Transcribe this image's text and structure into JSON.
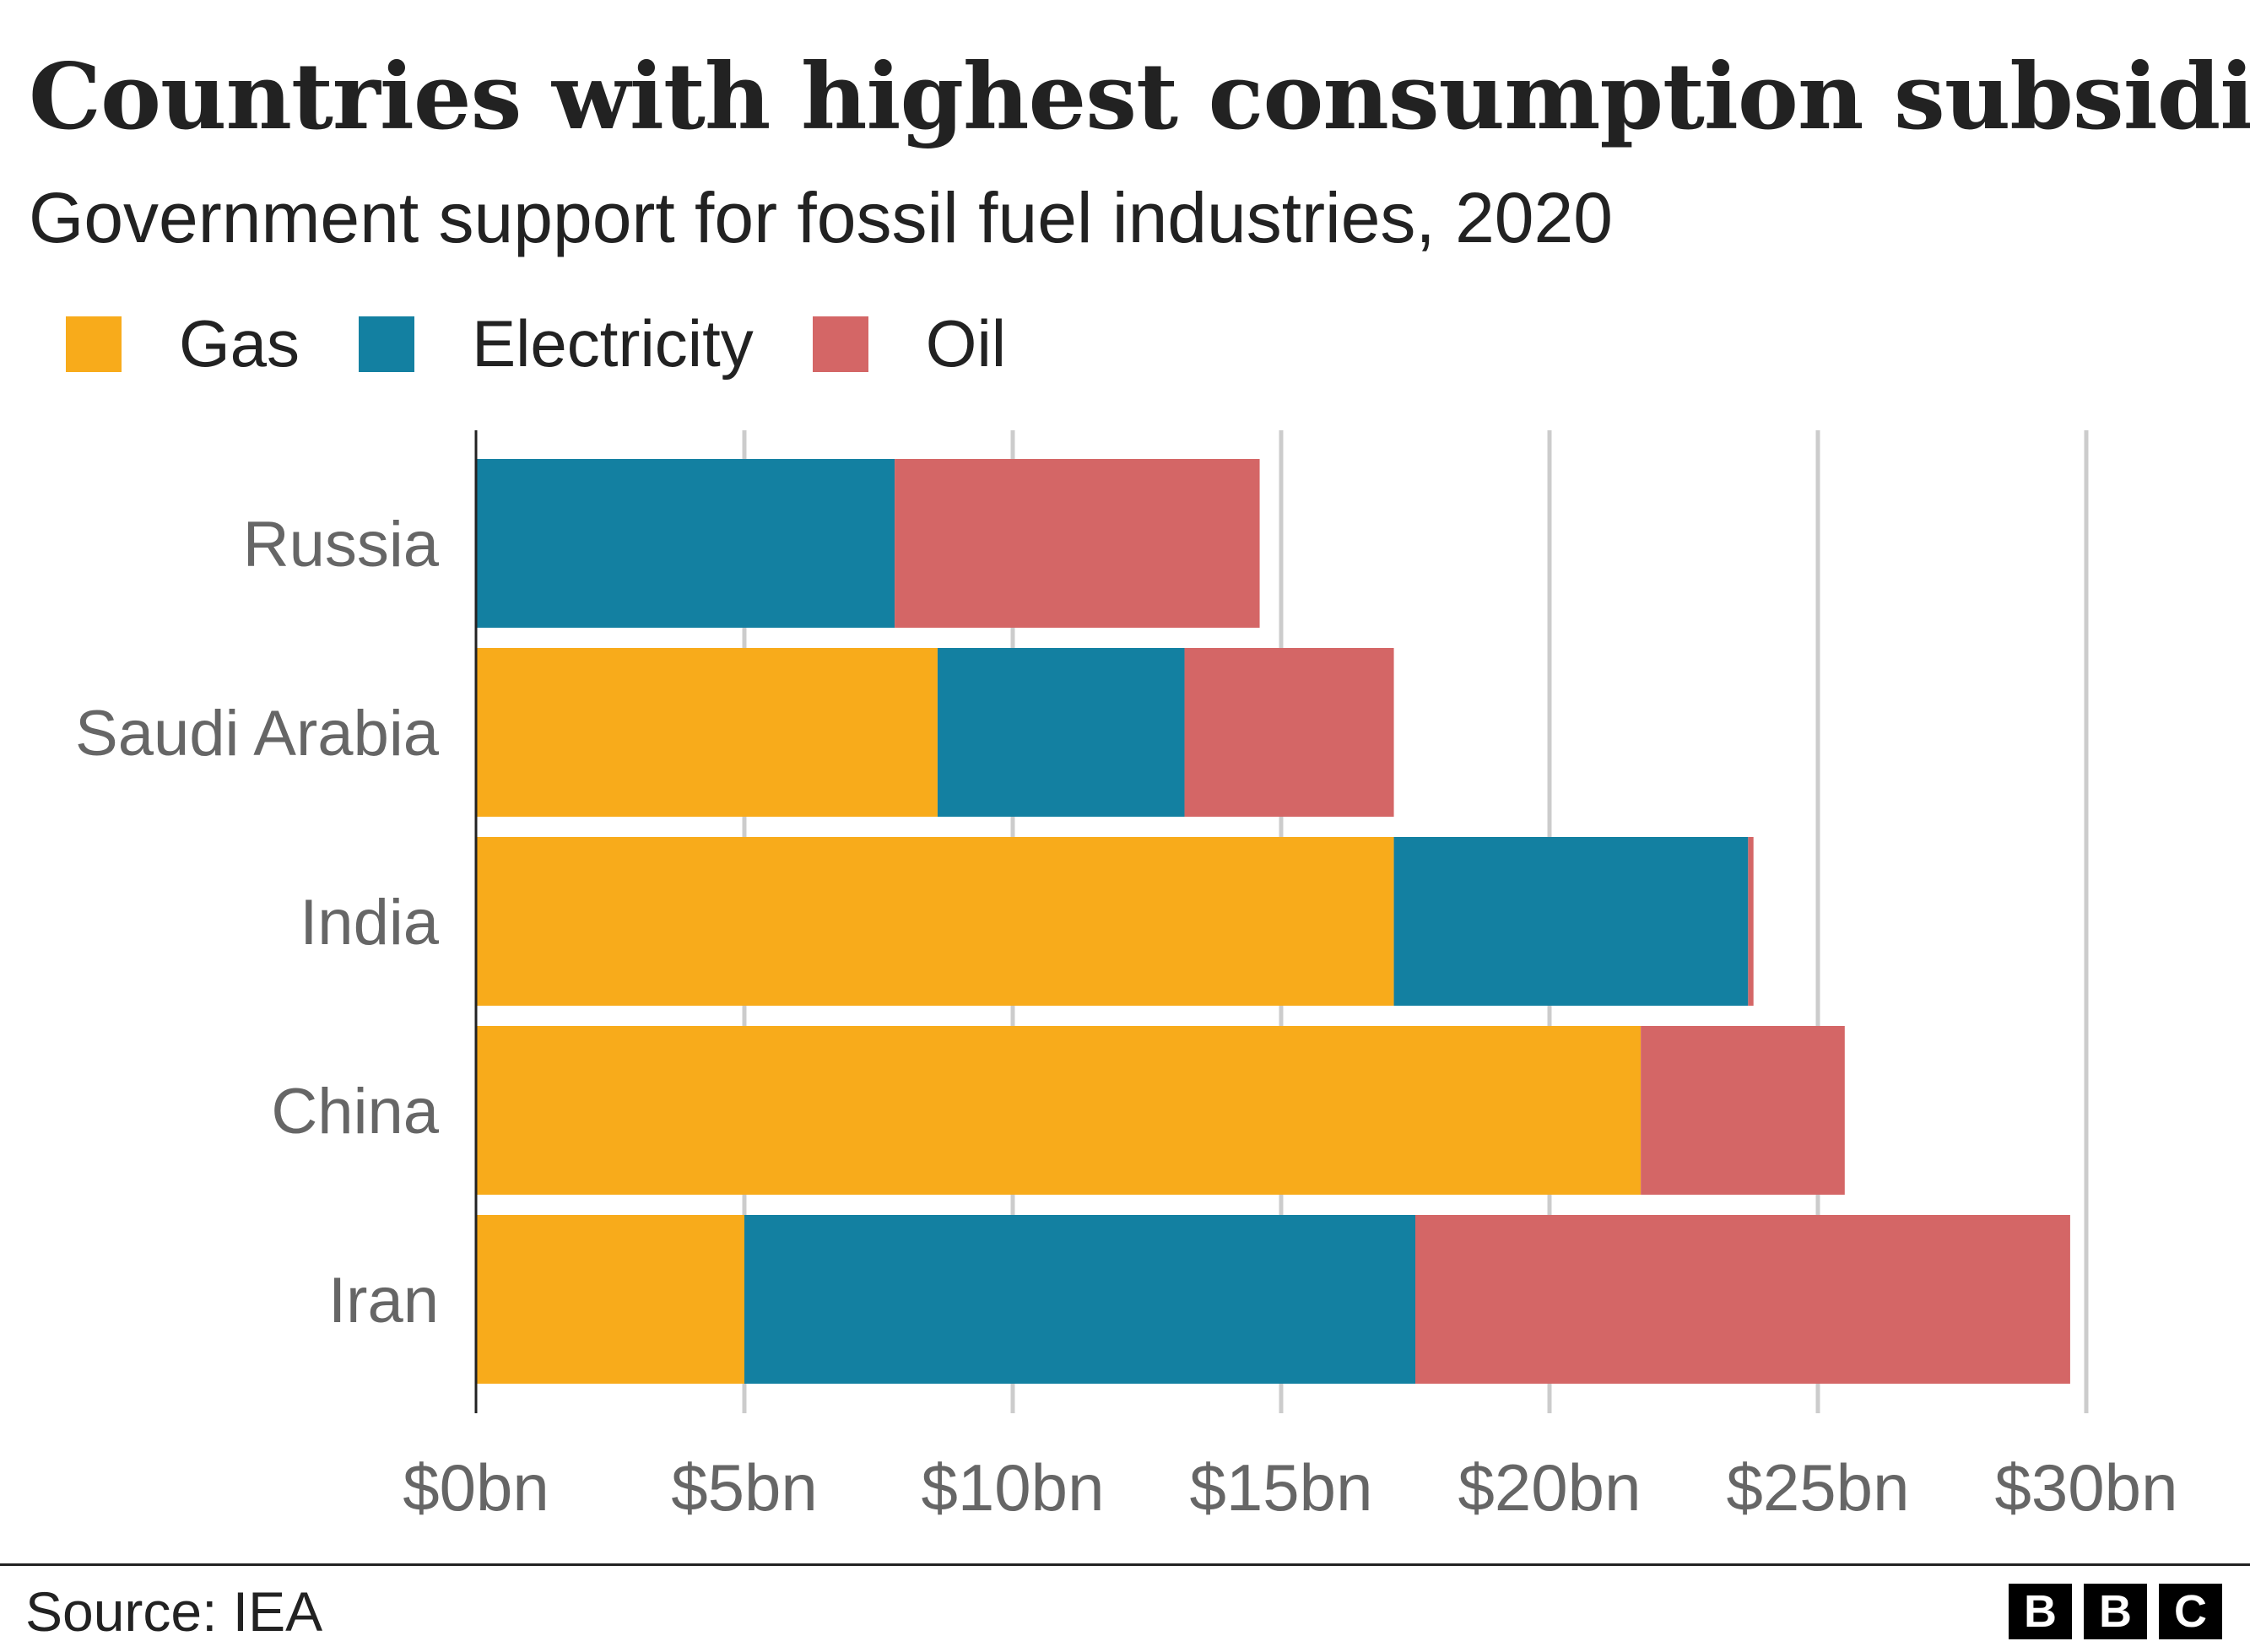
{
  "chart_data": {
    "type": "bar",
    "orientation": "horizontal",
    "stacked": true,
    "title": "Countries with highest consumption subsidies",
    "subtitle": "Government support for fossil fuel industries, 2020",
    "categories": [
      "Russia",
      "Saudi Arabia",
      "India",
      "China",
      "Iran"
    ],
    "series": [
      {
        "name": "Gas",
        "color": "#f8ab1b",
        "values": [
          0,
          8.6,
          17.1,
          21.7,
          5.0
        ]
      },
      {
        "name": "Electricity",
        "color": "#1380a1",
        "values": [
          7.8,
          4.6,
          6.6,
          0,
          12.5
        ]
      },
      {
        "name": "Oil",
        "color": "#d46666",
        "values": [
          6.8,
          3.9,
          0.1,
          3.8,
          12.2
        ]
      }
    ],
    "xlim": [
      0,
      30
    ],
    "xticks": [
      0,
      5,
      10,
      15,
      20,
      25,
      30
    ],
    "xtick_labels": [
      "$0bn",
      "$5bn",
      "$10bn",
      "$15bn",
      "$20bn",
      "$25bn",
      "$30bn"
    ],
    "units": "$bn",
    "grid": "vertical",
    "legend_placement": "top-left"
  },
  "footer": {
    "source": "Source: IEA",
    "logo": [
      "B",
      "B",
      "C"
    ]
  }
}
